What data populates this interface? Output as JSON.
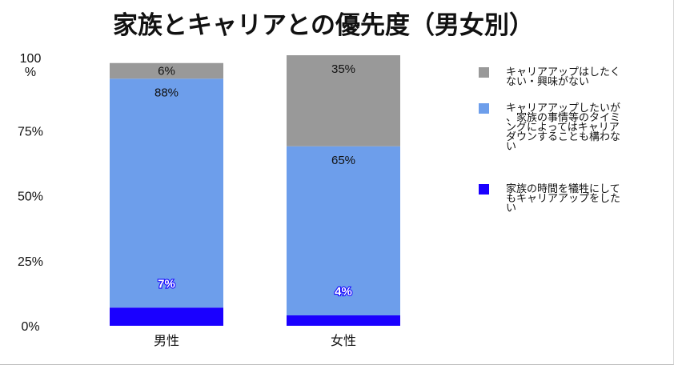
{
  "chart_data": {
    "type": "bar",
    "stacked": true,
    "title": "家族とキャリアとの優先度（男女別）",
    "categories": [
      "男性",
      "女性"
    ],
    "y_ticks": [
      "0%",
      "25%",
      "50%",
      "75%",
      "100\n%"
    ],
    "ylim": [
      0,
      100
    ],
    "legend_position": "right",
    "series": [
      {
        "name": "家族の時間を犠牲にしてもキャリアアップをしたい",
        "legend_lines": [
          "家族の時間を犠牲にして",
          "もキャリアアップをした",
          "い"
        ],
        "color": "#1a00ff",
        "values": [
          7,
          4
        ],
        "labels": [
          "7%",
          "4%"
        ],
        "label_style": "white"
      },
      {
        "name": "キャリアアップしたいが、家族の事情等のタイミングによってはキャリアダウンすることも構わない",
        "legend_lines": [
          "キャリアアップしたいが",
          "、家族の事情等のタイミ",
          "ングによってはキャリア",
          "ダウンすることも構わな",
          "い"
        ],
        "color": "#6d9eeb",
        "values": [
          88,
          65
        ],
        "labels": [
          "88%",
          "65%"
        ],
        "label_style": "dark"
      },
      {
        "name": "キャリアアップはしたくない・興味がない",
        "legend_lines": [
          "キャリアアップはしたく",
          "ない・興味がない"
        ],
        "color": "#999999",
        "values": [
          6,
          35
        ],
        "labels": [
          "6%",
          "35%"
        ],
        "label_style": "dark"
      }
    ]
  }
}
